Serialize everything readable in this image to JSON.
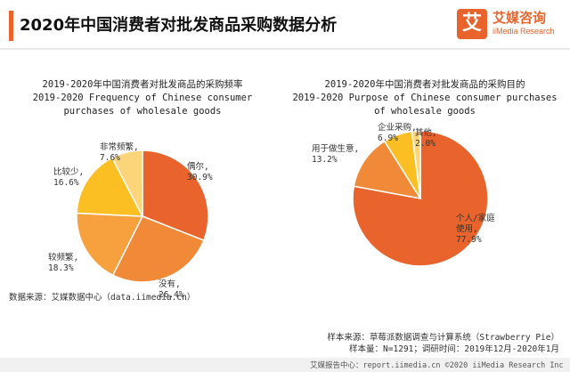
{
  "header": {
    "title": "2020年中国消费者对批发商品采购数据分析",
    "accent_color": "#e8642c"
  },
  "logo": {
    "mark": "艾",
    "name_cn": "艾媒咨询",
    "name_en": "iiMedia Research"
  },
  "source_text": "数据来源：艾媒数据中心（data.iimedia.cn）",
  "notes": {
    "sample_source": "样本来源：草莓派数据调查与计算系统（Strawberry Pie）",
    "sample_info": "样本量：N=1291；调研时间：2019年12月-2020年1月"
  },
  "footer": {
    "text": "艾媒报告中心：report.iimedia.cn   ©2020  iiMedia Research  Inc"
  },
  "chart_data": [
    {
      "type": "pie",
      "title_lines": [
        "2019-2020年中国消费者对批发商品的采购频率",
        "2019-2020 Frequency of Chinese consumer",
        "purchases of wholesale goods"
      ],
      "slices": [
        {
          "label": "偶尔",
          "value": 30.9,
          "text": "30.9%",
          "color": "#e8642c"
        },
        {
          "label": "没有",
          "value": 26.4,
          "text": "26.4%",
          "color": "#f08a38"
        },
        {
          "label": "较频繁",
          "value": 18.3,
          "text": "18.3%",
          "color": "#f7a13e"
        },
        {
          "label": "比较少",
          "value": 16.6,
          "text": "16.6%",
          "color": "#fbbf24"
        },
        {
          "label": "非常频繁",
          "value": 7.6,
          "text": "7.6%",
          "color": "#fcd57a"
        }
      ]
    },
    {
      "type": "pie",
      "title_lines": [
        "2019-2020年中国消费者对批发商品的采购目的",
        "2019-2020 Purpose of Chinese consumer purchases",
        "of wholesale goods"
      ],
      "slices": [
        {
          "label": "个人/家庭使用",
          "value": 77.9,
          "text": "77.9%",
          "color": "#e8642c"
        },
        {
          "label": "用于做生意",
          "value": 13.2,
          "text": "13.2%",
          "color": "#f08a38"
        },
        {
          "label": "企业采购",
          "value": 6.9,
          "text": "6.9%",
          "color": "#fbbf24"
        },
        {
          "label": "其他",
          "value": 2.0,
          "text": "2.0%",
          "color": "#fcd57a"
        }
      ]
    }
  ]
}
